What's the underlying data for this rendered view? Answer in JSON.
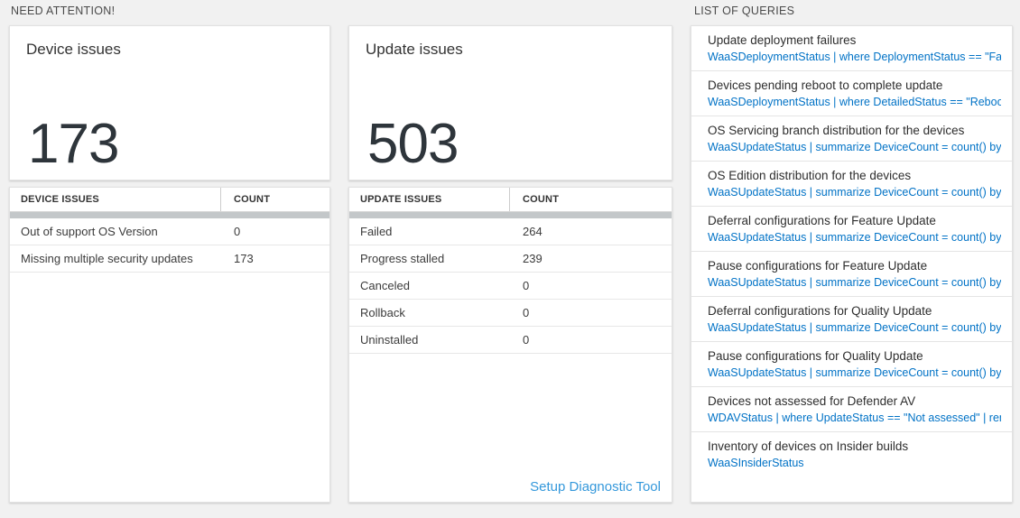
{
  "colors": {
    "background": "#f1f1f1",
    "panel": "#ffffff",
    "query_blue": "#0072c6",
    "link_blue": "#3498db",
    "number_dark": "#2e353b",
    "scrollbar_gray": "#c3c7c9"
  },
  "sections": {
    "need_attention": "NEED ATTENTION!",
    "list_of_queries": "LIST OF QUERIES"
  },
  "device_card": {
    "title": "Device issues",
    "count": "173"
  },
  "device_table": {
    "headers": [
      "DEVICE ISSUES",
      "COUNT"
    ],
    "rows": [
      {
        "label": "Out of support OS Version",
        "count": "0"
      },
      {
        "label": "Missing multiple security updates",
        "count": "173"
      }
    ]
  },
  "update_card": {
    "title": "Update issues",
    "count": "503"
  },
  "update_table": {
    "headers": [
      "UPDATE ISSUES",
      "COUNT"
    ],
    "rows": [
      {
        "label": "Failed",
        "count": "264"
      },
      {
        "label": "Progress stalled",
        "count": "239"
      },
      {
        "label": "Canceled",
        "count": "0"
      },
      {
        "label": "Rollback",
        "count": "0"
      },
      {
        "label": "Uninstalled",
        "count": "0"
      }
    ],
    "footer_link": "Setup Diagnostic Tool"
  },
  "queries": {
    "items": [
      {
        "title": "Update deployment failures",
        "query": "WaaSDeploymentStatus | where DeploymentStatus == \"Failed\" |..."
      },
      {
        "title": "Devices pending reboot to complete update",
        "query": "WaaSDeploymentStatus | where DetailedStatus == \"Reboot pend..."
      },
      {
        "title": "OS Servicing branch distribution for the devices",
        "query": "WaaSUpdateStatus | summarize DeviceCount = count() by OSSer..."
      },
      {
        "title": "OS Edition distribution for the devices",
        "query": "WaaSUpdateStatus | summarize DeviceCount = count() by OSEdit..."
      },
      {
        "title": "Deferral configurations for Feature Update",
        "query": "WaaSUpdateStatus | summarize DeviceCount = count() by Featur..."
      },
      {
        "title": "Pause configurations for Feature Update",
        "query": "WaaSUpdateStatus | summarize DeviceCount = count() by Featur..."
      },
      {
        "title": "Deferral configurations for Quality Update",
        "query": "WaaSUpdateStatus | summarize DeviceCount = count() by Qualit..."
      },
      {
        "title": "Pause configurations for Quality Update",
        "query": "WaaSUpdateStatus | summarize DeviceCount = count() by Qualit..."
      },
      {
        "title": "Devices not assessed for Defender AV",
        "query": "WDAVStatus | where UpdateStatus == \"Not assessed\" | render ta..."
      },
      {
        "title": "Inventory of devices on Insider builds",
        "query": "WaaSInsiderStatus"
      }
    ]
  }
}
